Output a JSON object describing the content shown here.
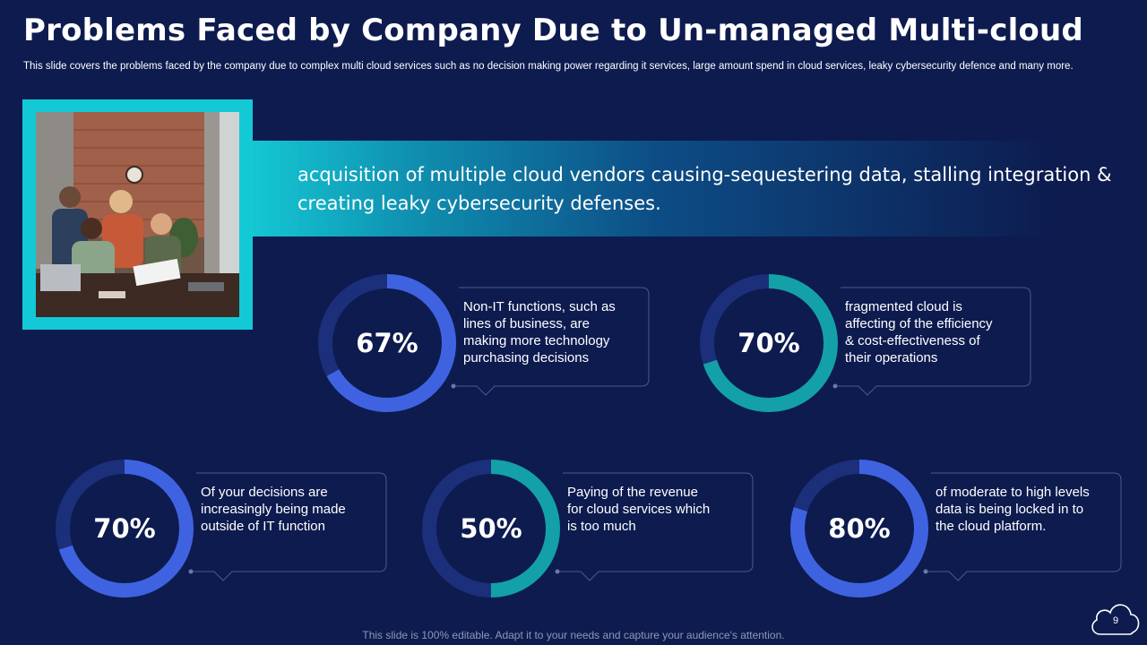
{
  "slide": {
    "title": "Problems Faced by Company Due to Un-managed Multi-cloud",
    "subtitle": "This slide covers the problems faced by the company due to complex multi cloud services such as no decision making power regarding it services, large amount spend in cloud services, leaky cybersecurity defence and many more.",
    "banner_text": "acquisition of multiple cloud vendors causing-sequestering data, stalling integration & creating leaky cybersecurity defenses.",
    "footer": "This slide is 100% editable. Adapt it to your needs and capture your audience's attention.",
    "page_number": "9"
  },
  "colors": {
    "background": "#0d1b4f",
    "teal_accent": "#14c9d6",
    "blue_accent": "#3f63e0",
    "teal_ring": "#13a0a6",
    "ring_track": "#1b2f7a"
  },
  "stats": [
    {
      "label": "67%",
      "fraction": 0.67,
      "color": "#3f63e0",
      "text": [
        "Non-IT functions, such as",
        "lines of business, are",
        "making more technology",
        "purchasing decisions"
      ]
    },
    {
      "label": "70%",
      "fraction": 0.7,
      "color": "#13a0a6",
      "text": [
        "fragmented cloud is",
        "affecting of the efficiency",
        "& cost-effectiveness of",
        "their operations"
      ]
    },
    {
      "label": "70%",
      "fraction": 0.7,
      "color": "#3f63e0",
      "text": [
        "Of your decisions are",
        "increasingly being made",
        "outside of IT function"
      ]
    },
    {
      "label": "50%",
      "fraction": 0.5,
      "color": "#13a0a6",
      "text": [
        "Paying of the revenue",
        "for cloud services which",
        "is too much"
      ]
    },
    {
      "label": "80%",
      "fraction": 0.8,
      "color": "#3f63e0",
      "text": [
        "of moderate to high levels",
        "data is being locked in to",
        "the cloud platform."
      ]
    }
  ]
}
